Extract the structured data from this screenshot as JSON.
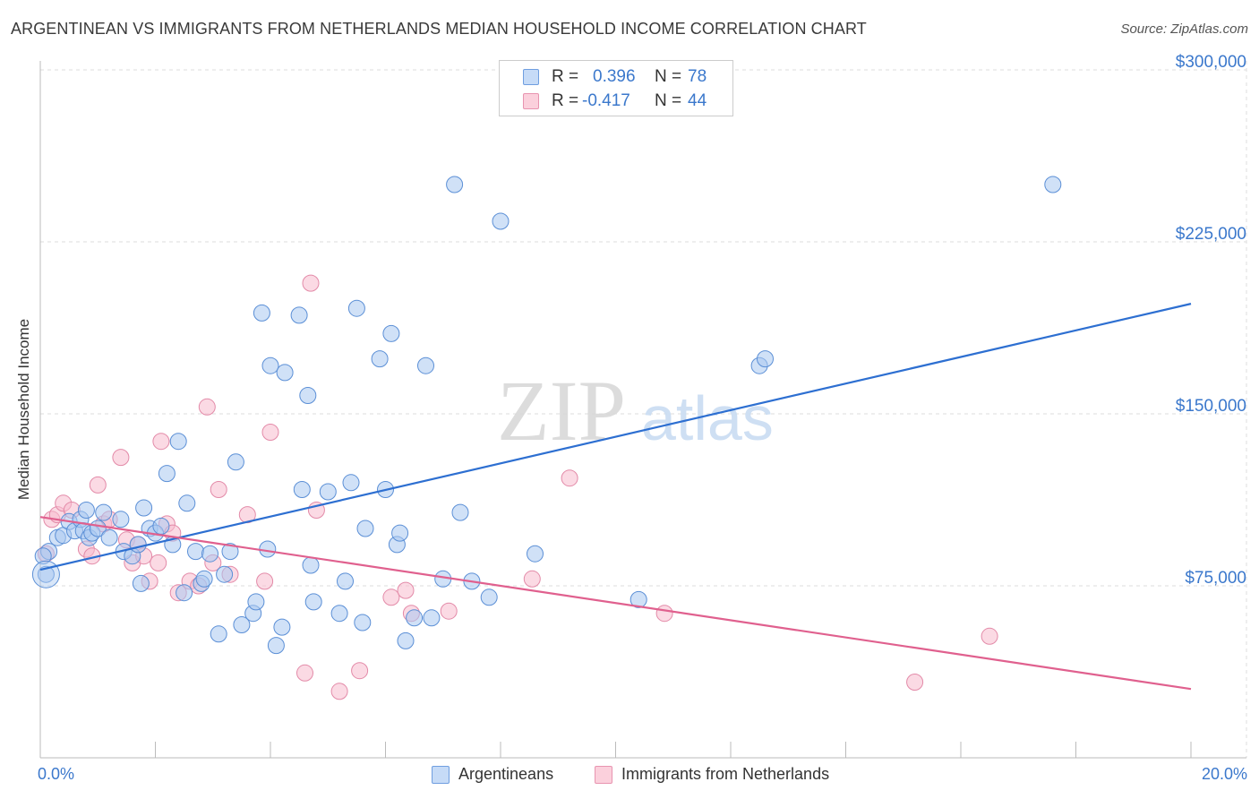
{
  "title": "ARGENTINEAN VS IMMIGRANTS FROM NETHERLANDS MEDIAN HOUSEHOLD INCOME CORRELATION CHART",
  "source": "Source: ZipAtlas.com",
  "watermark": {
    "zip": "ZIP",
    "atlas": "atlas"
  },
  "legend": {
    "series1": {
      "r_label": "R =",
      "r_value": "0.396",
      "n_label": "N =",
      "n_value": "78"
    },
    "series2": {
      "r_label": "R =",
      "r_value": "-0.417",
      "n_label": "N =",
      "n_value": "44"
    }
  },
  "colors": {
    "blue_fill": "#a9c8f0",
    "blue_stroke": "#5b8fd6",
    "blue_line": "#2d6fd1",
    "pink_fill": "#f7bccd",
    "pink_stroke": "#e38aa8",
    "pink_line": "#e0608e",
    "tick_text": "#3b78cc",
    "grid": "#dddddd"
  },
  "chart_data": {
    "type": "scatter",
    "title": "ARGENTINEAN VS IMMIGRANTS FROM NETHERLANDS MEDIAN HOUSEHOLD INCOME CORRELATION CHART",
    "xlabel": "",
    "ylabel": "Median Household Income",
    "xlim": [
      0,
      20
    ],
    "ylim": [
      0,
      300000
    ],
    "x_tick_labels": [
      "0.0%",
      "20.0%"
    ],
    "y_ticks": [
      75000,
      150000,
      225000,
      300000
    ],
    "y_tick_labels": [
      "$75,000",
      "$150,000",
      "$225,000",
      "$300,000"
    ],
    "grid": true,
    "legend_position": "top-center",
    "series": [
      {
        "name": "Argentineans",
        "color": "#a9c8f0",
        "trend": {
          "x": [
            0,
            20
          ],
          "y": [
            82000,
            198000
          ]
        },
        "points": [
          [
            0.1,
            80000
          ],
          [
            0.15,
            90000
          ],
          [
            0.3,
            96000
          ],
          [
            0.4,
            97000
          ],
          [
            0.5,
            103000
          ],
          [
            0.6,
            99000
          ],
          [
            0.7,
            104000
          ],
          [
            0.75,
            99000
          ],
          [
            0.8,
            108000
          ],
          [
            0.85,
            96000
          ],
          [
            0.9,
            98000
          ],
          [
            1.0,
            100000
          ],
          [
            1.1,
            107000
          ],
          [
            1.2,
            96000
          ],
          [
            1.4,
            104000
          ],
          [
            1.45,
            90000
          ],
          [
            1.6,
            88000
          ],
          [
            1.7,
            93000
          ],
          [
            1.75,
            76000
          ],
          [
            1.8,
            109000
          ],
          [
            1.9,
            100000
          ],
          [
            2.0,
            98000
          ],
          [
            2.1,
            101000
          ],
          [
            2.2,
            124000
          ],
          [
            2.3,
            93000
          ],
          [
            2.4,
            138000
          ],
          [
            2.5,
            72000
          ],
          [
            2.55,
            111000
          ],
          [
            2.7,
            90000
          ],
          [
            2.8,
            76000
          ],
          [
            2.85,
            78000
          ],
          [
            2.95,
            89000
          ],
          [
            3.1,
            54000
          ],
          [
            3.2,
            80000
          ],
          [
            3.3,
            90000
          ],
          [
            3.4,
            129000
          ],
          [
            3.5,
            58000
          ],
          [
            3.7,
            63000
          ],
          [
            3.75,
            68000
          ],
          [
            3.85,
            194000
          ],
          [
            3.95,
            91000
          ],
          [
            4.0,
            171000
          ],
          [
            4.1,
            49000
          ],
          [
            4.2,
            57000
          ],
          [
            4.25,
            168000
          ],
          [
            4.5,
            193000
          ],
          [
            4.55,
            117000
          ],
          [
            4.65,
            158000
          ],
          [
            4.7,
            84000
          ],
          [
            4.75,
            68000
          ],
          [
            5.0,
            116000
          ],
          [
            5.2,
            63000
          ],
          [
            5.3,
            77000
          ],
          [
            5.4,
            120000
          ],
          [
            5.5,
            196000
          ],
          [
            5.6,
            59000
          ],
          [
            5.65,
            100000
          ],
          [
            5.9,
            174000
          ],
          [
            6.0,
            117000
          ],
          [
            6.1,
            185000
          ],
          [
            6.2,
            93000
          ],
          [
            6.25,
            98000
          ],
          [
            6.35,
            51000
          ],
          [
            6.5,
            61000
          ],
          [
            6.7,
            171000
          ],
          [
            6.8,
            61000
          ],
          [
            7.0,
            78000
          ],
          [
            7.2,
            250000
          ],
          [
            7.3,
            107000
          ],
          [
            7.5,
            77000
          ],
          [
            7.8,
            70000
          ],
          [
            8.0,
            234000
          ],
          [
            8.6,
            89000
          ],
          [
            10.4,
            69000
          ],
          [
            12.5,
            171000
          ],
          [
            12.6,
            174000
          ],
          [
            17.6,
            250000
          ],
          [
            0.05,
            88000
          ]
        ]
      },
      {
        "name": "Immigrants from Netherlands",
        "color": "#f7bccd",
        "trend": {
          "x": [
            0,
            20
          ],
          "y": [
            105000,
            30000
          ]
        },
        "points": [
          [
            0.1,
            89000
          ],
          [
            0.2,
            104000
          ],
          [
            0.3,
            106000
          ],
          [
            0.4,
            111000
          ],
          [
            0.55,
            108000
          ],
          [
            0.8,
            91000
          ],
          [
            0.9,
            88000
          ],
          [
            1.0,
            119000
          ],
          [
            1.1,
            102000
          ],
          [
            1.2,
            104000
          ],
          [
            1.4,
            131000
          ],
          [
            1.5,
            95000
          ],
          [
            1.6,
            85000
          ],
          [
            1.7,
            93000
          ],
          [
            1.8,
            88000
          ],
          [
            1.9,
            77000
          ],
          [
            2.05,
            85000
          ],
          [
            2.1,
            138000
          ],
          [
            2.2,
            102000
          ],
          [
            2.3,
            98000
          ],
          [
            2.4,
            72000
          ],
          [
            2.6,
            77000
          ],
          [
            2.75,
            75000
          ],
          [
            2.9,
            153000
          ],
          [
            3.0,
            85000
          ],
          [
            3.1,
            117000
          ],
          [
            3.3,
            80000
          ],
          [
            3.6,
            106000
          ],
          [
            3.9,
            77000
          ],
          [
            4.0,
            142000
          ],
          [
            4.6,
            37000
          ],
          [
            4.7,
            207000
          ],
          [
            4.8,
            108000
          ],
          [
            5.2,
            29000
          ],
          [
            5.55,
            38000
          ],
          [
            6.1,
            70000
          ],
          [
            6.35,
            73000
          ],
          [
            6.45,
            63000
          ],
          [
            7.1,
            64000
          ],
          [
            8.55,
            78000
          ],
          [
            9.2,
            122000
          ],
          [
            10.85,
            63000
          ],
          [
            15.2,
            33000
          ],
          [
            16.5,
            53000
          ]
        ]
      }
    ]
  },
  "bottom_legend": {
    "item1": "Argentineans",
    "item2": "Immigrants from Netherlands"
  }
}
